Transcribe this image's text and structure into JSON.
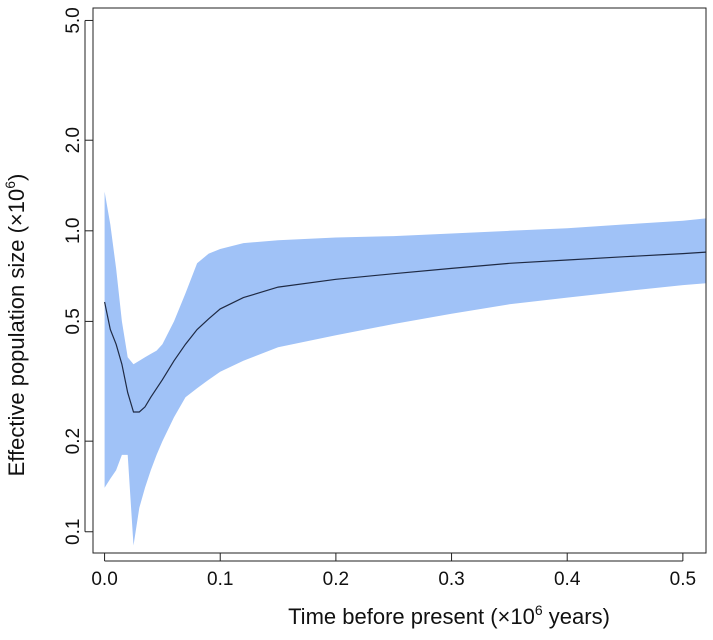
{
  "chart_data": {
    "type": "area",
    "xlabel_parts": [
      "Time before present (×10",
      "6",
      " years)"
    ],
    "ylabel_parts": [
      "Effective population size (×10",
      "6",
      ")"
    ],
    "xlim": [
      -0.01,
      0.52
    ],
    "ylim": [
      0.085,
      5.5
    ],
    "y_scale": "log",
    "x_ticks": [
      0.0,
      0.1,
      0.2,
      0.3,
      0.4,
      0.5
    ],
    "x_tick_labels": [
      "0.0",
      "0.1",
      "0.2",
      "0.3",
      "0.4",
      "0.5"
    ],
    "y_ticks": [
      0.1,
      0.2,
      0.5,
      1.0,
      2.0,
      5.0
    ],
    "y_tick_labels": [
      "0.1",
      "0.2",
      "0.5",
      "1.0",
      "2.0",
      "5.0"
    ],
    "grid": false,
    "series": [
      {
        "kind": "median_line",
        "color": "#1f2a44",
        "x": [
          0.0,
          0.005,
          0.01,
          0.015,
          0.02,
          0.025,
          0.03,
          0.035,
          0.04,
          0.05,
          0.06,
          0.07,
          0.08,
          0.09,
          0.1,
          0.12,
          0.15,
          0.2,
          0.25,
          0.3,
          0.35,
          0.4,
          0.45,
          0.5,
          0.52
        ],
        "y": [
          0.58,
          0.47,
          0.42,
          0.36,
          0.29,
          0.25,
          0.25,
          0.26,
          0.28,
          0.32,
          0.37,
          0.42,
          0.47,
          0.51,
          0.55,
          0.6,
          0.65,
          0.69,
          0.72,
          0.75,
          0.78,
          0.8,
          0.82,
          0.84,
          0.85
        ]
      },
      {
        "kind": "confidence_band",
        "color": "#a0c2f7",
        "x": [
          0.0,
          0.005,
          0.01,
          0.015,
          0.02,
          0.025,
          0.03,
          0.035,
          0.04,
          0.045,
          0.05,
          0.06,
          0.07,
          0.08,
          0.09,
          0.1,
          0.12,
          0.15,
          0.2,
          0.25,
          0.3,
          0.35,
          0.4,
          0.45,
          0.5,
          0.52
        ],
        "upper": [
          1.35,
          1.05,
          0.75,
          0.5,
          0.38,
          0.36,
          0.37,
          0.38,
          0.39,
          0.4,
          0.42,
          0.5,
          0.62,
          0.78,
          0.84,
          0.87,
          0.91,
          0.93,
          0.95,
          0.96,
          0.98,
          1.0,
          1.02,
          1.05,
          1.08,
          1.1
        ],
        "lower": [
          0.14,
          0.15,
          0.16,
          0.18,
          0.18,
          0.09,
          0.12,
          0.14,
          0.16,
          0.18,
          0.2,
          0.24,
          0.28,
          0.3,
          0.32,
          0.34,
          0.37,
          0.41,
          0.45,
          0.49,
          0.53,
          0.57,
          0.6,
          0.63,
          0.66,
          0.67
        ]
      }
    ]
  }
}
